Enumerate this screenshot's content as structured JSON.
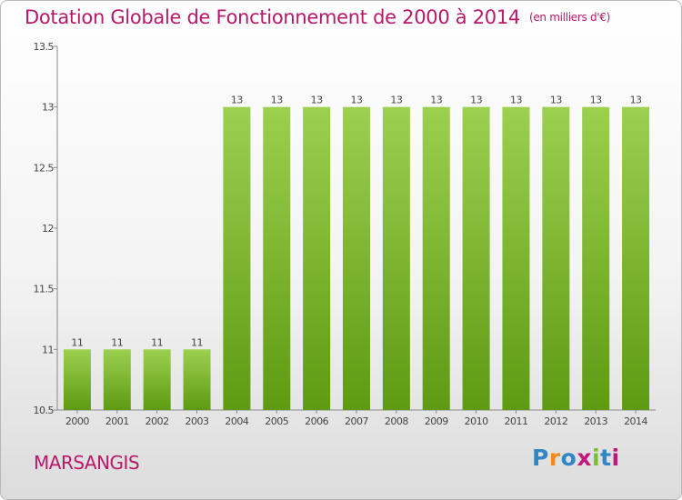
{
  "header": {
    "title": "Dotation Globale de Fonctionnement de 2000 à 2014",
    "unit": "(en milliers d'€)"
  },
  "footer": {
    "commune": "MARSANGIS",
    "logo_letters": [
      "P",
      "r",
      "o",
      "x",
      "i",
      "t",
      "i"
    ]
  },
  "colors": {
    "title": "#b8186a",
    "bar_light": "#9cd04f",
    "bar_dark": "#5e9a12"
  },
  "chart_data": {
    "type": "bar",
    "title": "Dotation Globale de Fonctionnement de 2000 à 2014",
    "subtitle": "(en milliers d'€)",
    "xlabel": "",
    "ylabel": "",
    "categories": [
      "2000",
      "2001",
      "2002",
      "2003",
      "2004",
      "2005",
      "2006",
      "2007",
      "2008",
      "2009",
      "2010",
      "2011",
      "2012",
      "2013",
      "2014"
    ],
    "values": [
      11,
      11,
      11,
      11,
      13,
      13,
      13,
      13,
      13,
      13,
      13,
      13,
      13,
      13,
      13
    ],
    "data_labels": [
      "11",
      "11",
      "11",
      "11",
      "13",
      "13",
      "13",
      "13",
      "13",
      "13",
      "13",
      "13",
      "13",
      "13",
      "13"
    ],
    "ylim": [
      10.5,
      13.5
    ],
    "yticks": [
      10.5,
      11,
      11.5,
      12,
      12.5,
      13,
      13.5
    ],
    "ytick_labels": [
      "10.5",
      "11",
      "11.5",
      "12",
      "12.5",
      "13",
      "13.5"
    ],
    "grid": false,
    "legend": "none"
  }
}
